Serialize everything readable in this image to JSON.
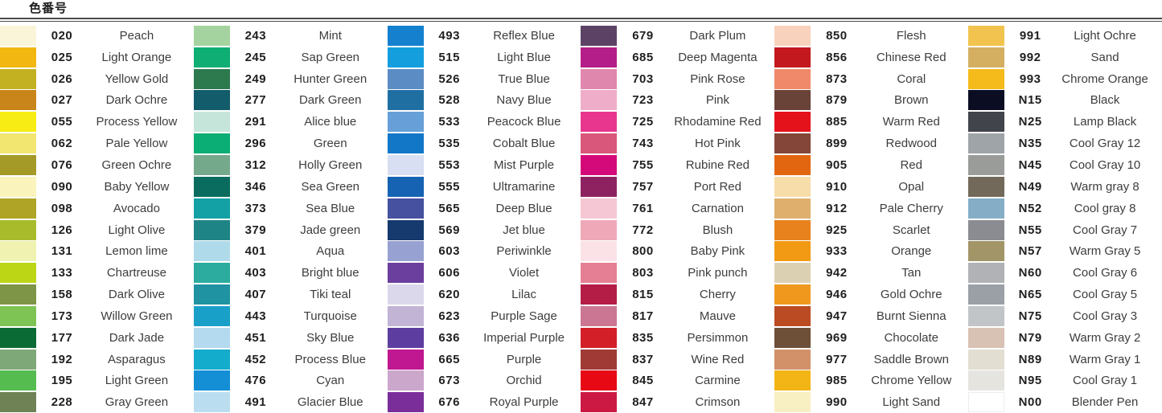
{
  "page": {
    "title": "色番号",
    "background": "#ffffff",
    "rule_color": "#4b4b4b"
  },
  "chart_data": {
    "type": "table",
    "title": "色番号",
    "column_fields": [
      "swatch_color",
      "code",
      "name"
    ],
    "columns": [
      {
        "items": [
          {
            "code": "020",
            "name": "Peach",
            "color": "#FAF5D8"
          },
          {
            "code": "025",
            "name": "Light Orange",
            "color": "#F2B711"
          },
          {
            "code": "026",
            "name": "Yellow Gold",
            "color": "#C4B122"
          },
          {
            "code": "027",
            "name": "Dark Ochre",
            "color": "#C98519"
          },
          {
            "code": "055",
            "name": "Process Yellow",
            "color": "#F7EC13"
          },
          {
            "code": "062",
            "name": "Pale Yellow",
            "color": "#F2E570"
          },
          {
            "code": "076",
            "name": "Green Ochre",
            "color": "#A39A28"
          },
          {
            "code": "090",
            "name": "Baby Yellow",
            "color": "#FAF3BC"
          },
          {
            "code": "098",
            "name": "Avocado",
            "color": "#AFA426"
          },
          {
            "code": "126",
            "name": "Light Olive",
            "color": "#A8BC2B"
          },
          {
            "code": "131",
            "name": "Lemon lime",
            "color": "#EFF2B0"
          },
          {
            "code": "133",
            "name": "Chartreuse",
            "color": "#BCD616"
          },
          {
            "code": "158",
            "name": "Dark Olive",
            "color": "#7E9447"
          },
          {
            "code": "173",
            "name": "Willow Green",
            "color": "#7EC454"
          },
          {
            "code": "177",
            "name": "Dark Jade",
            "color": "#0B6B35"
          },
          {
            "code": "192",
            "name": "Asparagus",
            "color": "#7FA878"
          },
          {
            "code": "195",
            "name": "Light Green",
            "color": "#55BC50"
          },
          {
            "code": "228",
            "name": "Gray Green",
            "color": "#6E8256"
          }
        ]
      },
      {
        "items": [
          {
            "code": "243",
            "name": "Mint",
            "color": "#A5D3A0"
          },
          {
            "code": "245",
            "name": "Sap Green",
            "color": "#0FAE74"
          },
          {
            "code": "249",
            "name": "Hunter Green",
            "color": "#2E7A4F"
          },
          {
            "code": "277",
            "name": "Dark Green",
            "color": "#125C6B"
          },
          {
            "code": "291",
            "name": "Alice blue",
            "color": "#C5E5DA"
          },
          {
            "code": "296",
            "name": "Green",
            "color": "#0BAE74"
          },
          {
            "code": "312",
            "name": "Holly Green",
            "color": "#74A98C"
          },
          {
            "code": "346",
            "name": "Sea Green",
            "color": "#0A6C5E"
          },
          {
            "code": "373",
            "name": "Sea Blue",
            "color": "#13A1A6"
          },
          {
            "code": "379",
            "name": "Jade green",
            "color": "#1F8486"
          },
          {
            "code": "401",
            "name": "Aqua",
            "color": "#AFDAEA"
          },
          {
            "code": "403",
            "name": "Bright blue",
            "color": "#2BAC9E"
          },
          {
            "code": "407",
            "name": "Tiki teal",
            "color": "#1F93A2"
          },
          {
            "code": "443",
            "name": "Turquoise",
            "color": "#19A0C8"
          },
          {
            "code": "451",
            "name": "Sky Blue",
            "color": "#B3DAEE"
          },
          {
            "code": "452",
            "name": "Process Blue",
            "color": "#14ACCC"
          },
          {
            "code": "476",
            "name": "Cyan",
            "color": "#148FD5"
          },
          {
            "code": "491",
            "name": "Glacier Blue",
            "color": "#BADEF0"
          }
        ]
      },
      {
        "items": [
          {
            "code": "493",
            "name": "Reflex Blue",
            "color": "#1480CE"
          },
          {
            "code": "515",
            "name": "Light Blue",
            "color": "#149EDE"
          },
          {
            "code": "526",
            "name": "True Blue",
            "color": "#5C8CC4"
          },
          {
            "code": "528",
            "name": "Navy Blue",
            "color": "#1F6FA3"
          },
          {
            "code": "533",
            "name": "Peacock Blue",
            "color": "#67A0D8"
          },
          {
            "code": "535",
            "name": "Cobalt Blue",
            "color": "#1377C8"
          },
          {
            "code": "553",
            "name": "Mist Purple",
            "color": "#D9DFF2"
          },
          {
            "code": "555",
            "name": "Ultramarine",
            "color": "#1563B2"
          },
          {
            "code": "565",
            "name": "Deep Blue",
            "color": "#46519F"
          },
          {
            "code": "569",
            "name": "Jet blue",
            "color": "#163A6E"
          },
          {
            "code": "603",
            "name": "Periwinkle",
            "color": "#98A2D2"
          },
          {
            "code": "606",
            "name": "Violet",
            "color": "#6A3F9E"
          },
          {
            "code": "620",
            "name": "Lilac",
            "color": "#DBD8EC"
          },
          {
            "code": "623",
            "name": "Purple Sage",
            "color": "#C2B4D5"
          },
          {
            "code": "636",
            "name": "Imperial Purple",
            "color": "#5D3EA0"
          },
          {
            "code": "665",
            "name": "Purple",
            "color": "#C01890"
          },
          {
            "code": "673",
            "name": "Orchid",
            "color": "#CBA7CB"
          },
          {
            "code": "676",
            "name": "Royal Purple",
            "color": "#7A2E9A"
          }
        ]
      },
      {
        "items": [
          {
            "code": "679",
            "name": "Dark Plum",
            "color": "#5C4366"
          },
          {
            "code": "685",
            "name": "Deep Magenta",
            "color": "#B41E89"
          },
          {
            "code": "703",
            "name": "Pink Rose",
            "color": "#E087AD"
          },
          {
            "code": "723",
            "name": "Pink",
            "color": "#EFADC9"
          },
          {
            "code": "725",
            "name": "Rhodamine Red",
            "color": "#E8368E"
          },
          {
            "code": "743",
            "name": "Hot Pink",
            "color": "#D8577A"
          },
          {
            "code": "755",
            "name": "Rubine Red",
            "color": "#D50A7A"
          },
          {
            "code": "757",
            "name": "Port Red",
            "color": "#8E2260"
          },
          {
            "code": "761",
            "name": "Carnation",
            "color": "#F5C7D4"
          },
          {
            "code": "772",
            "name": "Blush",
            "color": "#EFA8B8"
          },
          {
            "code": "800",
            "name": "Baby Pink",
            "color": "#FAE2E7"
          },
          {
            "code": "803",
            "name": "Pink punch",
            "color": "#E57F94"
          },
          {
            "code": "815",
            "name": "Cherry",
            "color": "#B41D46"
          },
          {
            "code": "817",
            "name": "Mauve",
            "color": "#CB7692"
          },
          {
            "code": "835",
            "name": "Persimmon",
            "color": "#D31F27"
          },
          {
            "code": "837",
            "name": "Wine Red",
            "color": "#9F3A35"
          },
          {
            "code": "845",
            "name": "Carmine",
            "color": "#E70A15"
          },
          {
            "code": "847",
            "name": "Crimson",
            "color": "#CB1943"
          }
        ]
      },
      {
        "items": [
          {
            "code": "850",
            "name": "Flesh",
            "color": "#F8D2BC"
          },
          {
            "code": "856",
            "name": "Chinese Red",
            "color": "#C3191E"
          },
          {
            "code": "873",
            "name": "Coral",
            "color": "#EF896A"
          },
          {
            "code": "879",
            "name": "Brown",
            "color": "#6A4338"
          },
          {
            "code": "885",
            "name": "Warm Red",
            "color": "#E4121B"
          },
          {
            "code": "899",
            "name": "Redwood",
            "color": "#834639"
          },
          {
            "code": "905",
            "name": "Red",
            "color": "#E2660F"
          },
          {
            "code": "910",
            "name": "Opal",
            "color": "#F7DDA9"
          },
          {
            "code": "912",
            "name": "Pale Cherry",
            "color": "#DFAF6E"
          },
          {
            "code": "925",
            "name": "Scarlet",
            "color": "#E8821C"
          },
          {
            "code": "933",
            "name": "Orange",
            "color": "#F29A14"
          },
          {
            "code": "942",
            "name": "Tan",
            "color": "#DCD0B3"
          },
          {
            "code": "946",
            "name": "Gold Ochre",
            "color": "#F0981E"
          },
          {
            "code": "947",
            "name": "Burnt Sienna",
            "color": "#BB4B23"
          },
          {
            "code": "969",
            "name": "Chocolate",
            "color": "#6D5037"
          },
          {
            "code": "977",
            "name": "Saddle Brown",
            "color": "#D29169"
          },
          {
            "code": "985",
            "name": "Chrome Yellow",
            "color": "#F2B515"
          },
          {
            "code": "990",
            "name": "Light Sand",
            "color": "#F8EFC3"
          }
        ]
      },
      {
        "items": [
          {
            "code": "991",
            "name": "Light Ochre",
            "color": "#F2C44F"
          },
          {
            "code": "992",
            "name": "Sand",
            "color": "#D4AF62"
          },
          {
            "code": "993",
            "name": "Chrome Orange",
            "color": "#F5BB1B"
          },
          {
            "code": "N15",
            "name": "Black",
            "color": "#0B0E23"
          },
          {
            "code": "N25",
            "name": "Lamp Black",
            "color": "#42444B"
          },
          {
            "code": "N35",
            "name": "Cool Gray 12",
            "color": "#9EA4A7"
          },
          {
            "code": "N45",
            "name": "Cool Gray 10",
            "color": "#999C98"
          },
          {
            "code": "N49",
            "name": "Warm gray 8",
            "color": "#72695A"
          },
          {
            "code": "N52",
            "name": "Cool gray 8",
            "color": "#85AEC6"
          },
          {
            "code": "N55",
            "name": "Cool Gray 7",
            "color": "#8A8C92"
          },
          {
            "code": "N57",
            "name": "Warm Gray 5",
            "color": "#A29567"
          },
          {
            "code": "N60",
            "name": "Cool Gray 6",
            "color": "#B0B2B5"
          },
          {
            "code": "N65",
            "name": "Cool Gray 5",
            "color": "#9BA0A7"
          },
          {
            "code": "N75",
            "name": "Cool Gray 3",
            "color": "#C2C5C8"
          },
          {
            "code": "N79",
            "name": "Warm Gray 2",
            "color": "#D7C2B3"
          },
          {
            "code": "N89",
            "name": "Warm Gray 1",
            "color": "#E2DED1"
          },
          {
            "code": "N95",
            "name": "Cool Gray 1",
            "color": "#E5E4DF"
          },
          {
            "code": "N00",
            "name": "Blender Pen",
            "color": "#FFFFFF",
            "border": "#ECECEC"
          }
        ]
      }
    ]
  }
}
